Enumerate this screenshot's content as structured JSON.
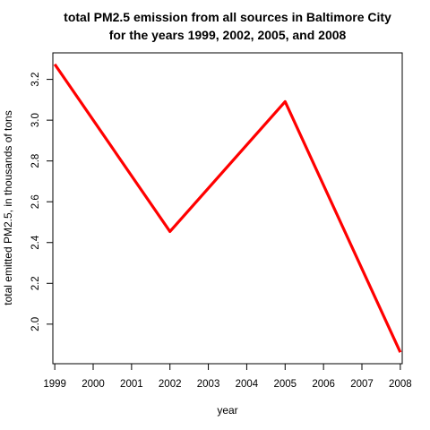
{
  "chart_data": {
    "type": "line",
    "title": [
      "total PM2.5 emission from all sources in Baltimore City",
      "for the years 1999, 2002, 2005, and 2008"
    ],
    "xlabel": "year",
    "ylabel": "total emitted PM2.5, in thousands of tons",
    "x": [
      1999,
      2002,
      2005,
      2008
    ],
    "values": [
      3.274,
      2.454,
      3.091,
      1.862
    ],
    "xlim": [
      1998.95,
      2008.05
    ],
    "ylim": [
      1.806,
      3.33
    ],
    "x_ticks": [
      1999,
      2000,
      2001,
      2002,
      2003,
      2004,
      2005,
      2006,
      2007,
      2008
    ],
    "y_ticks": [
      2.0,
      2.2,
      2.4,
      2.6,
      2.8,
      3.0,
      3.2
    ],
    "line_color": "#ff0000",
    "grid": false,
    "legend": "none"
  }
}
